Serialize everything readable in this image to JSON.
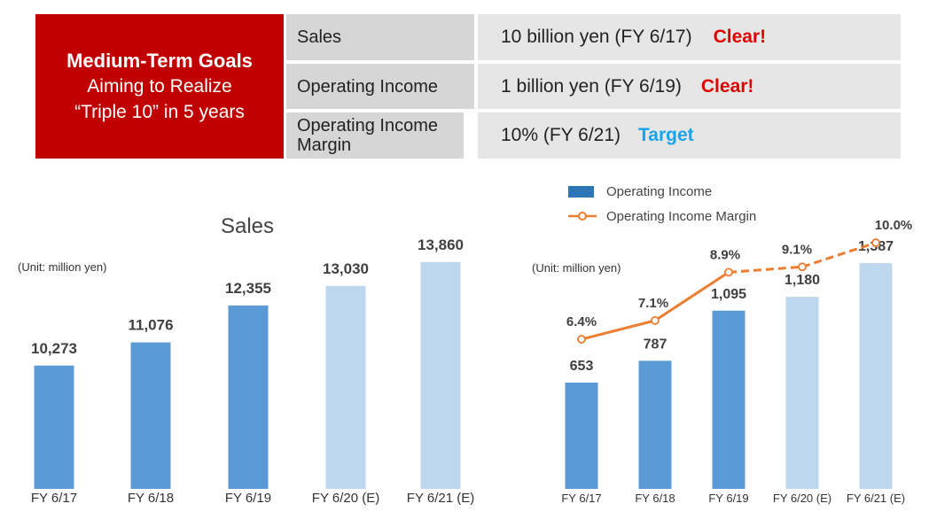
{
  "goals": {
    "title": "Medium-Term Goals",
    "subtitle_line1": "Aiming to Realize",
    "subtitle_line2": "“Triple 10” in 5 years",
    "rows": [
      {
        "label": "Sales",
        "value": "10 billion yen (FY 6/17)",
        "status": "Clear!"
      },
      {
        "label": "Operating Income",
        "value": "1 billion yen (FY 6/19)",
        "status": "Clear!"
      },
      {
        "label": "Operating Income Margin",
        "value": "10% (FY 6/21)",
        "status": "Target"
      }
    ]
  },
  "colors": {
    "red_panel": "#c00000",
    "bar_actual": "#5b9bd5",
    "bar_estimate": "#bdd7ee",
    "legend_blue": "#2e75b6",
    "margin_line": "#ed7d31",
    "clear": "#e00000",
    "target": "#1aa3e8"
  },
  "chart_data": [
    {
      "type": "bar",
      "title": "Sales",
      "unit_note": "(Unit: million yen)",
      "categories": [
        "FY 6/17",
        "FY 6/18",
        "FY 6/19",
        "FY 6/20 (E)",
        "FY 6/21 (E)"
      ],
      "values": [
        10273,
        11076,
        12355,
        13030,
        13860
      ],
      "value_labels": [
        "10,273",
        "11,076",
        "12,355",
        "13,030",
        "13,860"
      ],
      "estimate": [
        false,
        false,
        false,
        true,
        true
      ],
      "ylim": [
        6000,
        14500
      ]
    },
    {
      "type": "bar+line",
      "unit_note": "(Unit: million yen)",
      "categories": [
        "FY 6/17",
        "FY 6/18",
        "FY 6/19",
        "FY 6/20 (E)",
        "FY 6/21 (E)"
      ],
      "series": [
        {
          "name": "Operating Income",
          "values": [
            653,
            787,
            1095,
            1180,
            1387
          ],
          "value_labels": [
            "653",
            "787",
            "1,095",
            "1,180",
            "1,387"
          ]
        },
        {
          "name": "Operating Income Margin",
          "values": [
            6.4,
            7.1,
            8.9,
            9.1,
            10.0
          ],
          "value_labels": [
            "6.4%",
            "7.1%",
            "8.9%",
            "9.1%",
            "10.0%"
          ]
        }
      ],
      "estimate": [
        false,
        false,
        false,
        true,
        true
      ],
      "ylim_bars": [
        0,
        1480
      ],
      "ylim_margin": [
        3.0,
        10.3
      ]
    }
  ]
}
